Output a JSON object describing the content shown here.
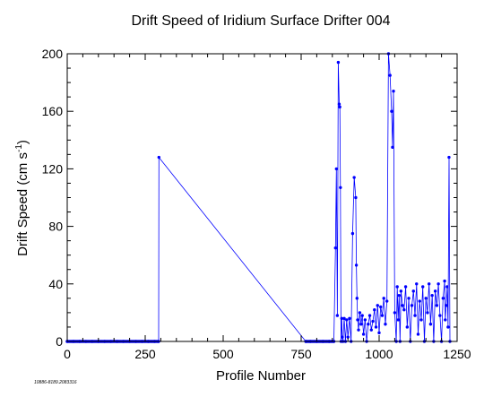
{
  "chart_data": {
    "type": "line",
    "title": "Drift Speed of Iridium Surface Drifter 004",
    "xlabel": "Profile Number",
    "ylabel": "Drift Speed (cm s",
    "ylabel_sup": "-1",
    "ylabel_close": ")",
    "xlim": [
      0,
      1250
    ],
    "ylim": [
      0,
      200
    ],
    "xticks": [
      0,
      250,
      500,
      750,
      1000,
      1250
    ],
    "yticks": [
      0,
      40,
      80,
      120,
      160,
      200
    ],
    "grid": false,
    "marker_color": "#0000ff",
    "line_color": "#0000ff",
    "footnote": "10886-8189.2083316",
    "series": [
      {
        "x": [
          0,
          20,
          40,
          60,
          80,
          100,
          120,
          140,
          160,
          180,
          200,
          220,
          240,
          260,
          280,
          293,
          294,
          765,
          780,
          800,
          820,
          840,
          855,
          860,
          863,
          866,
          869,
          872,
          874,
          876,
          878,
          880,
          882,
          884,
          888,
          892,
          896,
          900,
          905,
          910,
          915,
          920,
          925,
          927,
          929,
          931,
          934,
          938,
          942,
          946,
          950,
          955,
          960,
          965,
          970,
          975,
          980,
          985,
          990,
          995,
          1000,
          1005,
          1010,
          1015,
          1020,
          1025,
          1030,
          1035,
          1040,
          1043,
          1046,
          1050,
          1055,
          1058,
          1061,
          1064,
          1067,
          1070,
          1075,
          1080,
          1085,
          1090,
          1095,
          1100,
          1105,
          1110,
          1115,
          1120,
          1125,
          1130,
          1135,
          1140,
          1145,
          1150,
          1155,
          1160,
          1165,
          1170,
          1175,
          1180,
          1185,
          1190,
          1195,
          1200,
          1205,
          1210,
          1212,
          1215,
          1218,
          1221,
          1224,
          1227
        ],
        "y": [
          0,
          0,
          0,
          0,
          0,
          0,
          0,
          0,
          0,
          0,
          0,
          0,
          0,
          0,
          0,
          0,
          128,
          0,
          0,
          0,
          0,
          0,
          0,
          65,
          120,
          18,
          194,
          165,
          163,
          107,
          0,
          16,
          3,
          0,
          16,
          0,
          15,
          3,
          16,
          0,
          75,
          114,
          100,
          53,
          30,
          15,
          8,
          20,
          12,
          18,
          5,
          15,
          0,
          12,
          18,
          8,
          14,
          22,
          10,
          25,
          6,
          24,
          18,
          30,
          12,
          28,
          200,
          185,
          160,
          135,
          174,
          20,
          0,
          38,
          15,
          32,
          0,
          35,
          25,
          22,
          38,
          10,
          30,
          0,
          25,
          35,
          18,
          40,
          5,
          28,
          15,
          38,
          0,
          30,
          20,
          40,
          12,
          32,
          0,
          35,
          25,
          40,
          18,
          0,
          30,
          42,
          15,
          25,
          38,
          10,
          128,
          0
        ]
      }
    ]
  }
}
